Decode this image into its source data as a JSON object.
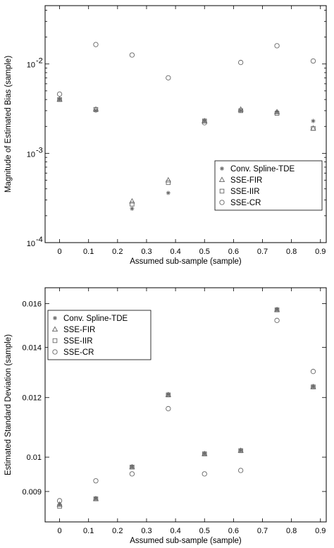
{
  "chart_data": [
    {
      "type": "scatter",
      "y_scale": "log",
      "xlim": [
        -0.05,
        0.92
      ],
      "ylim": [
        0.0001,
        0.045
      ],
      "x_ticks": [
        0,
        0.1,
        0.2,
        0.3,
        0.4,
        0.5,
        0.6,
        0.7,
        0.8,
        0.9
      ],
      "x_tick_labels": [
        "0",
        "0.1",
        "0.2",
        "0.3",
        "0.4",
        "0.5",
        "0.6",
        "0.7",
        "0.8",
        "0.9"
      ],
      "y_ticks": [
        0.0001,
        0.001,
        0.01
      ],
      "y_tick_labels": [
        {
          "base": "10",
          "exp": "-4"
        },
        {
          "base": "10",
          "exp": "-3"
        },
        {
          "base": "10",
          "exp": "-2"
        }
      ],
      "xlabel": "Assumed sub-sample (sample)",
      "ylabel": "Magnitude of Estimated Bias (sample)",
      "legend_position": "lower-right",
      "x": [
        0,
        0.125,
        0.25,
        0.375,
        0.5,
        0.625,
        0.75,
        0.875
      ],
      "series": [
        {
          "name": "Conv. Spline-TDE",
          "marker": "asterisk",
          "values": [
            0.004,
            0.003,
            0.00024,
            0.00036,
            0.0023,
            0.003,
            0.0029,
            0.0023
          ]
        },
        {
          "name": "SSE-FIR",
          "marker": "triangle",
          "values": [
            0.004,
            0.0031,
            0.00029,
            0.0005,
            0.0023,
            0.0031,
            0.0029,
            0.0019
          ]
        },
        {
          "name": "SSE-IIR",
          "marker": "square",
          "values": [
            0.004,
            0.0031,
            0.00027,
            0.00047,
            0.0023,
            0.003,
            0.0028,
            0.0019
          ]
        },
        {
          "name": "SSE-CR",
          "marker": "circle",
          "values": [
            0.0046,
            0.0165,
            0.0126,
            0.007,
            0.0022,
            0.0104,
            0.016,
            0.0108
          ]
        }
      ]
    },
    {
      "type": "scatter",
      "y_scale": "log",
      "xlim": [
        -0.05,
        0.92
      ],
      "ylim": [
        0.0082,
        0.0168
      ],
      "x_ticks": [
        0,
        0.1,
        0.2,
        0.3,
        0.4,
        0.5,
        0.6,
        0.7,
        0.8,
        0.9
      ],
      "x_tick_labels": [
        "0",
        "0.1",
        "0.2",
        "0.3",
        "0.4",
        "0.5",
        "0.6",
        "0.7",
        "0.8",
        "0.9"
      ],
      "y_ticks": [
        0.009,
        0.01,
        0.012,
        0.014,
        0.016
      ],
      "y_tick_labels": [
        "0.009",
        "0.01",
        "0.012",
        "0.014",
        "0.016"
      ],
      "xlabel": "Assumed sub-sample (sample)",
      "ylabel": "Estimated Standard Deviation (sample)",
      "legend_position": "top-left",
      "x": [
        0,
        0.125,
        0.25,
        0.375,
        0.5,
        0.625,
        0.75,
        0.875
      ],
      "series": [
        {
          "name": "Conv. Spline-TDE",
          "marker": "asterisk",
          "values": [
            0.00865,
            0.0088,
            0.0097,
            0.0121,
            0.0101,
            0.0102,
            0.0157,
            0.0124
          ]
        },
        {
          "name": "SSE-FIR",
          "marker": "triangle",
          "values": [
            0.00865,
            0.0088,
            0.0097,
            0.0121,
            0.0101,
            0.0102,
            0.0157,
            0.0124
          ]
        },
        {
          "name": "SSE-IIR",
          "marker": "square",
          "values": [
            0.0086,
            0.0088,
            0.0097,
            0.0121,
            0.0101,
            0.0102,
            0.0157,
            0.0124
          ]
        },
        {
          "name": "SSE-CR",
          "marker": "circle",
          "values": [
            0.00875,
            0.0093,
            0.0095,
            0.0116,
            0.0095,
            0.0096,
            0.0152,
            0.013
          ]
        }
      ]
    }
  ]
}
